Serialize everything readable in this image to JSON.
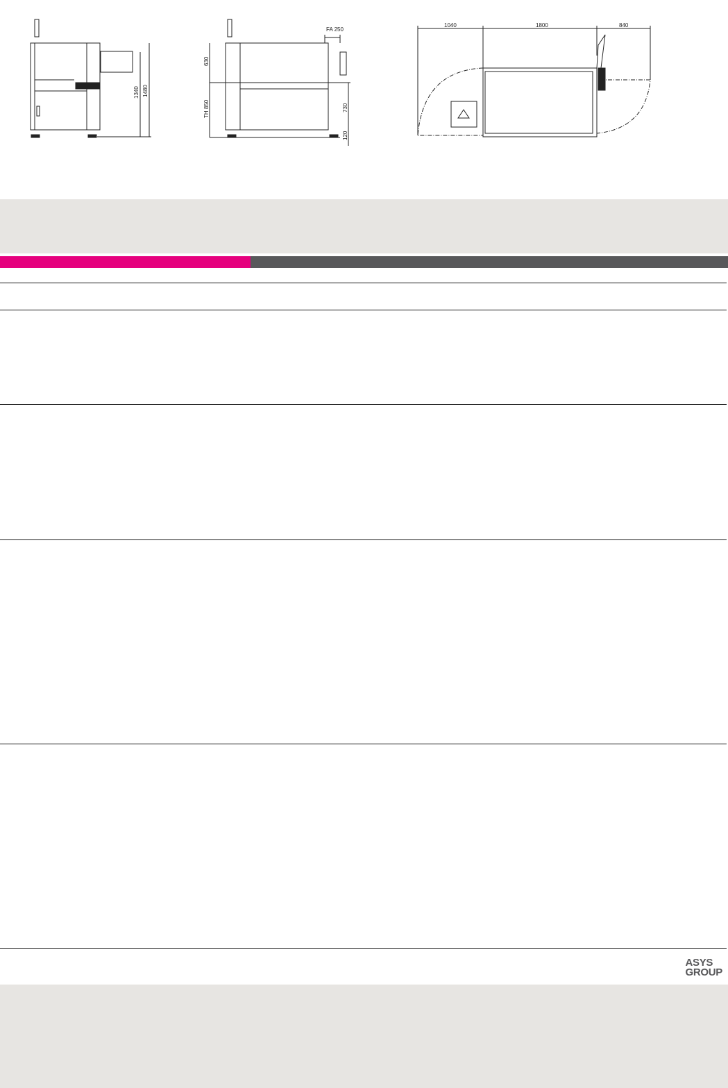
{
  "drawings": {
    "front_view": {
      "dim_inner": "1340",
      "dim_outer": "1480"
    },
    "side_view": {
      "dim_top": "630",
      "dim_fa": "FA 250",
      "dim_th": "TH 850",
      "dim_mid": "730",
      "dim_bottom": "120"
    },
    "top_view": {
      "dim_left": "1040",
      "dim_center": "1800",
      "dim_right": "840"
    }
  },
  "accent": {
    "magenta": "#e5007d",
    "dark_gray": "#58585a",
    "band_gray": "#e7e5e2"
  },
  "progress_bar": {
    "magenta_fraction": 0.344
  },
  "footer": {
    "logo_line1": "ASYS",
    "logo_line2": "GROUP"
  }
}
